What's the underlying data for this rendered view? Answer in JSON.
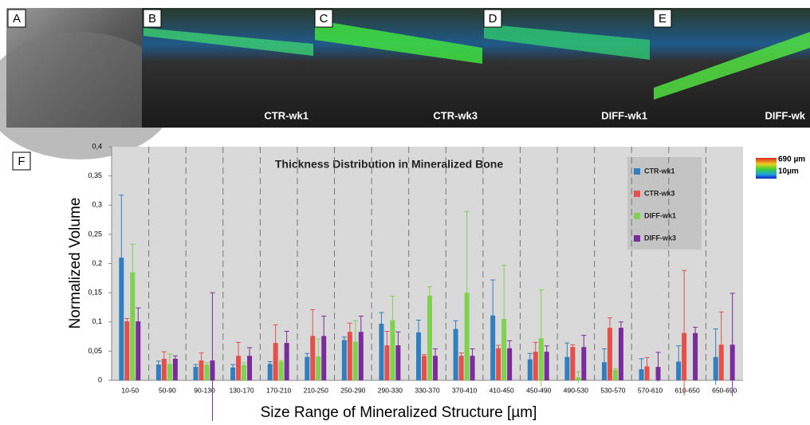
{
  "panels": [
    {
      "letter": "A"
    },
    {
      "letter": "B",
      "caption": "CTR-wk1"
    },
    {
      "letter": "C",
      "caption": "CTR-wk3"
    },
    {
      "letter": "D",
      "caption": "DIFF-wk1"
    },
    {
      "letter": "E",
      "caption": "DIFF-wk"
    }
  ],
  "colorbar": {
    "max_label": "690 µm",
    "min_label": "10µm"
  },
  "figure_label": "F",
  "chart_data": {
    "type": "bar",
    "title": "Thickness Distribution  in Mineralized Bone",
    "xlabel": "Size Range of Mineralized Structure [µm]",
    "ylabel": "Normalized Volume",
    "categories": [
      "10-50",
      "50-90",
      "90-130",
      "130-170",
      "170-210",
      "210-250",
      "250-290",
      "290-330",
      "330-370",
      "370-410",
      "410-450",
      "450-490",
      "490-530",
      "530-570",
      "570-610",
      "610-650",
      "650-690"
    ],
    "series": [
      {
        "name": "CTR-wk1",
        "color": "#2f7fc1",
        "values": [
          0.21,
          0.027,
          0.023,
          0.022,
          0.028,
          0.04,
          0.069,
          0.097,
          0.082,
          0.088,
          0.111,
          0.036,
          0.04,
          0.031,
          0.019,
          0.032,
          0.04
        ],
        "errors": [
          0.107,
          0.006,
          0.004,
          0.005,
          0.004,
          0.006,
          0.005,
          0.019,
          0.021,
          0.014,
          0.061,
          0.01,
          0.024,
          0.023,
          0.018,
          0.027,
          0.048
        ]
      },
      {
        "name": "CTR-wk3",
        "color": "#e5504a",
        "values": [
          0.101,
          0.037,
          0.034,
          0.042,
          0.064,
          0.076,
          0.083,
          0.06,
          0.042,
          0.042,
          0.055,
          0.049,
          0.057,
          0.09,
          0.024,
          0.081,
          0.061
        ],
        "errors": [
          0.005,
          0.012,
          0.013,
          0.023,
          0.031,
          0.045,
          0.015,
          0.024,
          0.002,
          0.005,
          0.005,
          0.016,
          0.004,
          0.017,
          0.015,
          0.107,
          0.056
        ]
      },
      {
        "name": "DIFF-wk1",
        "color": "#7ed24e",
        "values": [
          0.185,
          0.028,
          0.027,
          0.026,
          0.032,
          0.041,
          0.066,
          0.103,
          0.145,
          0.15,
          0.105,
          0.072,
          0.005,
          0.018,
          null,
          null,
          null
        ],
        "errors": [
          0.048,
          0.017,
          0.003,
          0.004,
          0.002,
          0.03,
          0.036,
          0.041,
          0.015,
          0.139,
          0.092,
          0.083,
          0.01,
          0.002,
          null,
          null,
          null
        ]
      },
      {
        "name": "DIFF-wk3",
        "color": "#7b2c9b",
        "values": [
          0.101,
          0.037,
          0.034,
          0.042,
          0.064,
          0.076,
          0.083,
          0.06,
          0.042,
          0.042,
          0.055,
          0.049,
          0.057,
          0.09,
          0.023,
          0.081,
          0.061
        ],
        "errors": [
          0.023,
          0.005,
          0.116,
          0.014,
          0.02,
          0.034,
          0.027,
          0.023,
          0.012,
          0.012,
          0.013,
          0.01,
          0.02,
          0.01,
          0.025,
          0.01,
          0.088
        ]
      }
    ],
    "ylim": [
      0,
      0.4
    ],
    "yticks": [
      {
        "value": 0,
        "label": "0"
      },
      {
        "value": 0.05,
        "label": "0,05"
      },
      {
        "value": 0.1,
        "label": "0,1"
      },
      {
        "value": 0.15,
        "label": "0,15"
      },
      {
        "value": 0.2,
        "label": "0,2"
      },
      {
        "value": 0.25,
        "label": "0,25"
      },
      {
        "value": 0.3,
        "label": "0,3"
      },
      {
        "value": 0.35,
        "label": "0,35"
      },
      {
        "value": 0.4,
        "label": "0,4"
      }
    ]
  }
}
